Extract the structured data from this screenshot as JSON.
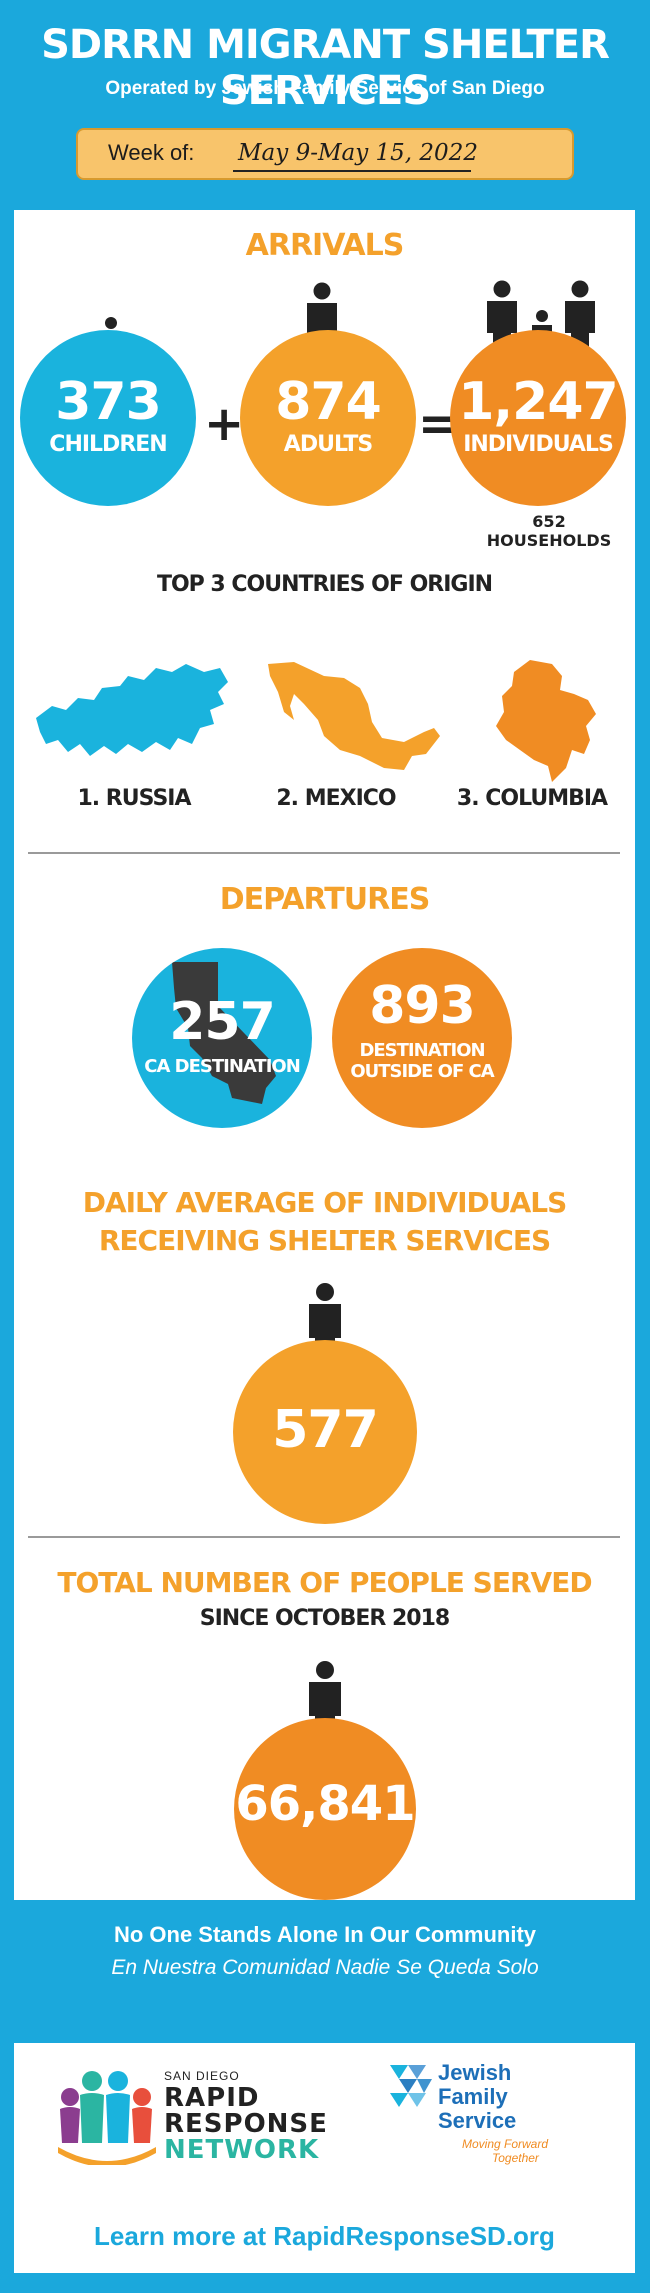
{
  "header": {
    "title": "SDRRN MIGRANT SHELTER SERVICES",
    "subtitle": "Operated by Jewish Family Service of San Diego",
    "week_label": "Week of:",
    "week_value": "May 9-May 15, 2022"
  },
  "arrivals": {
    "title": "ARRIVALS",
    "children_value": "373",
    "children_label": "CHILDREN",
    "plus": "+",
    "adults_value": "874",
    "adults_label": "ADULTS",
    "equals": "=",
    "individuals_value": "1,247",
    "individuals_label": "INDIVIDUALS",
    "households": "652 HOUSEHOLDS"
  },
  "countries": {
    "title": "TOP 3 COUNTRIES OF ORIGIN",
    "items": [
      "1. RUSSIA",
      "2. MEXICO",
      "3. COLUMBIA"
    ]
  },
  "departures": {
    "title": "DEPARTURES",
    "ca_value": "257",
    "ca_label": "CA DESTINATION",
    "outside_value": "893",
    "outside_label_1": "DESTINATION",
    "outside_label_2": "OUTSIDE OF CA"
  },
  "daily": {
    "title_1": "DAILY AVERAGE OF INDIVIDUALS",
    "title_2": "RECEIVING SHELTER SERVICES",
    "value": "577"
  },
  "total": {
    "title": "TOTAL NUMBER OF PEOPLE SERVED",
    "since": "SINCE OCTOBER 2018",
    "value": "66,841"
  },
  "footer": {
    "tagline_en": "No One Stands Alone In Our Community",
    "tagline_es": "En Nuestra Comunidad Nadie Se Queda Solo",
    "rrn_small": "SAN DIEGO",
    "rrn_1": "RAPID",
    "rrn_2": "RESPONSE",
    "rrn_3": "NETWORK",
    "jfs_1": "Jewish",
    "jfs_2": "Family",
    "jfs_3": "Service",
    "jfs_tag_1": "Moving Forward",
    "jfs_tag_2": "Together",
    "learn_more": "Learn more at RapidResponseSD.org"
  },
  "colors": {
    "background": "#1ba8dc",
    "orange": "#f4a12b",
    "dark_orange": "#f08c23",
    "blue": "#1ab3dd"
  }
}
